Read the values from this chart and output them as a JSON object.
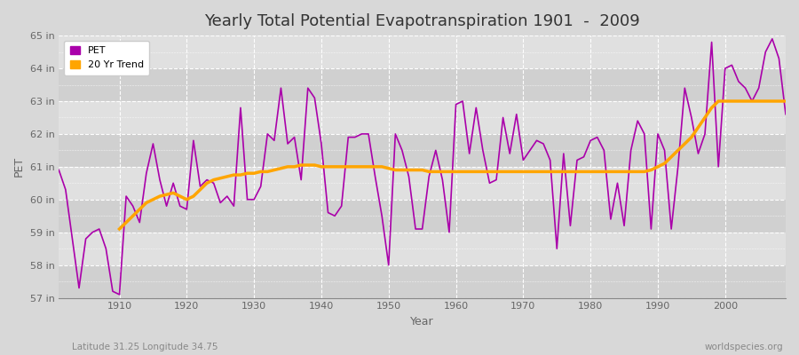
{
  "title": "Yearly Total Potential Evapotranspiration 1901  -  2009",
  "xlabel": "Year",
  "ylabel": "PET",
  "subtitle_left": "Latitude 31.25 Longitude 34.75",
  "subtitle_right": "worldspecies.org",
  "years": [
    1901,
    1902,
    1903,
    1904,
    1905,
    1906,
    1907,
    1908,
    1909,
    1910,
    1911,
    1912,
    1913,
    1914,
    1915,
    1916,
    1917,
    1918,
    1919,
    1920,
    1921,
    1922,
    1923,
    1924,
    1925,
    1926,
    1927,
    1928,
    1929,
    1930,
    1931,
    1932,
    1933,
    1934,
    1935,
    1936,
    1937,
    1938,
    1939,
    1940,
    1941,
    1942,
    1943,
    1944,
    1945,
    1946,
    1947,
    1948,
    1949,
    1950,
    1951,
    1952,
    1953,
    1954,
    1955,
    1956,
    1957,
    1958,
    1959,
    1960,
    1961,
    1962,
    1963,
    1964,
    1965,
    1966,
    1967,
    1968,
    1969,
    1970,
    1971,
    1972,
    1973,
    1974,
    1975,
    1976,
    1977,
    1978,
    1979,
    1980,
    1981,
    1982,
    1983,
    1984,
    1985,
    1986,
    1987,
    1988,
    1989,
    1990,
    1991,
    1992,
    1993,
    1994,
    1995,
    1996,
    1997,
    1998,
    1999,
    2000,
    2001,
    2002,
    2003,
    2004,
    2005,
    2006,
    2007,
    2008,
    2009
  ],
  "pet_values": [
    60.9,
    60.3,
    58.8,
    57.3,
    58.8,
    59.0,
    59.1,
    58.5,
    57.2,
    57.1,
    60.1,
    59.8,
    59.3,
    60.8,
    61.7,
    60.6,
    59.8,
    60.5,
    59.8,
    59.7,
    61.8,
    60.4,
    60.6,
    60.5,
    59.9,
    60.1,
    59.8,
    62.8,
    60.0,
    60.0,
    60.4,
    62.0,
    61.8,
    63.4,
    61.7,
    61.9,
    60.6,
    63.4,
    63.1,
    61.7,
    59.6,
    59.5,
    59.8,
    61.9,
    61.9,
    62.0,
    62.0,
    60.7,
    59.5,
    58.0,
    62.0,
    61.5,
    60.7,
    59.1,
    59.1,
    60.7,
    61.5,
    60.6,
    59.0,
    62.9,
    63.0,
    61.4,
    62.8,
    61.5,
    60.5,
    60.6,
    62.5,
    61.4,
    62.6,
    61.2,
    61.5,
    61.8,
    61.7,
    61.2,
    58.5,
    61.4,
    59.2,
    61.2,
    61.3,
    61.8,
    61.9,
    61.5,
    59.4,
    60.5,
    59.2,
    61.5,
    62.4,
    62.0,
    59.1,
    62.0,
    61.5,
    59.1,
    61.0,
    63.4,
    62.5,
    61.4,
    62.0,
    64.8,
    61.0,
    64.0,
    64.1,
    63.6,
    63.4,
    63.0,
    63.4,
    64.5,
    64.9,
    64.3,
    62.6
  ],
  "trend_years": [
    1910,
    1911,
    1912,
    1913,
    1914,
    1915,
    1916,
    1917,
    1918,
    1919,
    1920,
    1921,
    1922,
    1923,
    1924,
    1925,
    1926,
    1927,
    1928,
    1929,
    1930,
    1931,
    1932,
    1933,
    1934,
    1935,
    1936,
    1937,
    1938,
    1939,
    1940,
    1941,
    1942,
    1943,
    1944,
    1945,
    1946,
    1947,
    1948,
    1949,
    1950,
    1951,
    1952,
    1953,
    1954,
    1955,
    1956,
    1957,
    1958,
    1959,
    1960,
    1961,
    1962,
    1963,
    1964,
    1965,
    1966,
    1967,
    1968,
    1969,
    1970,
    1971,
    1972,
    1973,
    1974,
    1975,
    1976,
    1977,
    1978,
    1979,
    1980,
    1981,
    1982,
    1983,
    1984,
    1985,
    1986,
    1987,
    1988,
    1989,
    1990,
    1991,
    1992,
    1993,
    1994,
    1995,
    1996,
    1997,
    1998,
    1999,
    2000,
    2001,
    2002,
    2003,
    2004,
    2005,
    2006,
    2007,
    2008,
    2009
  ],
  "trend_values": [
    59.1,
    59.3,
    59.5,
    59.7,
    59.9,
    60.0,
    60.1,
    60.15,
    60.2,
    60.1,
    60.0,
    60.1,
    60.3,
    60.5,
    60.6,
    60.65,
    60.7,
    60.75,
    60.75,
    60.8,
    60.8,
    60.85,
    60.85,
    60.9,
    60.95,
    61.0,
    61.0,
    61.05,
    61.05,
    61.05,
    61.0,
    61.0,
    61.0,
    61.0,
    61.0,
    61.0,
    61.0,
    61.0,
    61.0,
    61.0,
    60.95,
    60.9,
    60.9,
    60.9,
    60.9,
    60.9,
    60.85,
    60.85,
    60.85,
    60.85,
    60.85,
    60.85,
    60.85,
    60.85,
    60.85,
    60.85,
    60.85,
    60.85,
    60.85,
    60.85,
    60.85,
    60.85,
    60.85,
    60.85,
    60.85,
    60.85,
    60.85,
    60.85,
    60.85,
    60.85,
    60.85,
    60.85,
    60.85,
    60.85,
    60.85,
    60.85,
    60.85,
    60.85,
    60.85,
    60.9,
    61.0,
    61.1,
    61.3,
    61.5,
    61.7,
    61.9,
    62.2,
    62.5,
    62.8,
    63.0,
    63.0,
    63.0,
    63.0,
    63.0,
    63.0,
    63.0,
    63.0,
    63.0,
    63.0,
    63.0
  ],
  "pet_color": "#aa00aa",
  "trend_color": "#ffa500",
  "bg_color": "#d8d8d8",
  "band_colors": [
    "#d0d0d0",
    "#e0e0e0"
  ],
  "grid_color": "#ffffff",
  "ylim": [
    57,
    65
  ],
  "ytick_labels": [
    "57 in",
    "58 in",
    "59 in",
    "60 in",
    "61 in",
    "62 in",
    "63 in",
    "64 in",
    "65 in"
  ],
  "ytick_values": [
    57,
    58,
    59,
    60,
    61,
    62,
    63,
    64,
    65
  ],
  "xtick_values": [
    1910,
    1920,
    1930,
    1940,
    1950,
    1960,
    1970,
    1980,
    1990,
    2000
  ],
  "xlim": [
    1901,
    2009
  ],
  "title_fontsize": 13,
  "label_fontsize": 9,
  "tick_fontsize": 8
}
